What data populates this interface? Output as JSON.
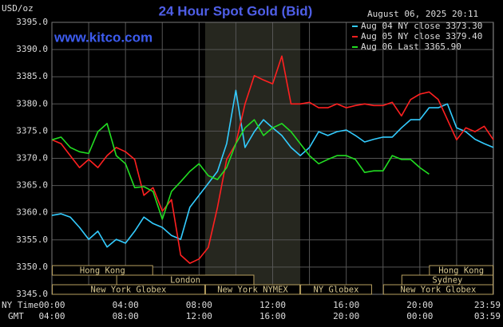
{
  "chart_data": {
    "type": "line",
    "title": "24 Hour Spot Gold (Bid)",
    "unit_label": "USD/oz",
    "timestamp": "August 06, 2025 20:11",
    "watermark": "www.kitco.com",
    "x_row_labels": [
      "NY Time",
      "GMT"
    ],
    "x": [
      0,
      0.5,
      1,
      1.5,
      2,
      2.5,
      3,
      3.5,
      4,
      4.5,
      5,
      5.5,
      6,
      6.5,
      7,
      7.5,
      8,
      8.5,
      9,
      9.5,
      10,
      10.5,
      11,
      11.5,
      12,
      12.5,
      13,
      13.5,
      14,
      14.5,
      15,
      15.5,
      16,
      16.5,
      17,
      17.5,
      18,
      18.5,
      19,
      19.5,
      20,
      20.5,
      21,
      21.5,
      22,
      22.5,
      23,
      23.5,
      24
    ],
    "series": [
      {
        "name": "Aug 04 NY close 3373.30",
        "color": "#33ccff",
        "values": [
          3359.5,
          3359.8,
          3359.2,
          3357.3,
          3355.1,
          3356.6,
          3353.7,
          3355.1,
          3354.4,
          3356.6,
          3359.2,
          3358,
          3357.3,
          3355.8,
          3355.1,
          3361,
          3363.2,
          3365.4,
          3367.6,
          3372.7,
          3382.5,
          3372,
          3374.9,
          3377.1,
          3375.6,
          3374.2,
          3372,
          3370.5,
          3372,
          3374.9,
          3374.2,
          3374.9,
          3375.2,
          3374.2,
          3373,
          3373.5,
          3373.9,
          3373.9,
          3375.6,
          3377.1,
          3377.1,
          3379.3,
          3379.3,
          3380,
          3375.6,
          3374.9,
          3373.5,
          3372.7,
          3372
        ]
      },
      {
        "name": "Aug 05 NY close 3379.40",
        "color": "#ff2020",
        "values": [
          3373.4,
          3372.7,
          3370.5,
          3368.3,
          3369.8,
          3368.3,
          3370.5,
          3372,
          3371.2,
          3369.8,
          3363.2,
          3364.6,
          3360.3,
          3362.4,
          3352.2,
          3350.7,
          3351.5,
          3353.6,
          3361,
          3369.8,
          3372.7,
          3380,
          3385.2,
          3384.4,
          3383.7,
          3388.8,
          3380,
          3380,
          3380.3,
          3379.3,
          3379.3,
          3380,
          3379.3,
          3379.7,
          3380,
          3379.7,
          3379.7,
          3380.3,
          3377.8,
          3380.8,
          3381.8,
          3382.2,
          3380.8,
          3377.1,
          3373.4,
          3375.6,
          3374.9,
          3375.9,
          3373.4
        ]
      },
      {
        "name": "Aug 06 Last 3365.90",
        "color": "#22dd22",
        "values": [
          3373.4,
          3373.9,
          3372,
          3371.2,
          3370.9,
          3374.9,
          3376.4,
          3370.5,
          3369,
          3364.6,
          3364.8,
          3363.9,
          3358.8,
          3363.9,
          3365.7,
          3367.6,
          3369,
          3366.8,
          3366.1,
          3368.3,
          3372.7,
          3375.6,
          3377.1,
          3374.2,
          3375.6,
          3376.4,
          3374.9,
          3372.7,
          3370.5,
          3369,
          3369.8,
          3370.5,
          3370.5,
          3369.8,
          3367.4,
          3367.7,
          3367.7,
          3370.5,
          3369.8,
          3369.8,
          3368.3,
          3367.1,
          null,
          null,
          null,
          null,
          null,
          null,
          null
        ]
      }
    ],
    "xlim": [
      0,
      24
    ],
    "xticks": [
      {
        "value": 0,
        "label": "00:00"
      },
      {
        "value": 4,
        "label": "04:00"
      },
      {
        "value": 8,
        "label": "08:00"
      },
      {
        "value": 12,
        "label": "12:00"
      },
      {
        "value": 16,
        "label": "16:00"
      },
      {
        "value": 20,
        "label": "20:00"
      },
      {
        "value": 23.98,
        "label": "23:59"
      }
    ],
    "xticks_gmt": [
      "04:00",
      "08:00",
      "12:00",
      "16:00",
      "20:00",
      "00:00",
      "03:59"
    ],
    "xminor": [
      2,
      6,
      10,
      14,
      18,
      22
    ],
    "ylim": [
      3345,
      3395
    ],
    "yticks": [
      {
        "value": 3345,
        "label": "3345.0"
      },
      {
        "value": 3350,
        "label": "3350.0"
      },
      {
        "value": 3355,
        "label": "3355.0"
      },
      {
        "value": 3360,
        "label": "3360.0"
      },
      {
        "value": 3365,
        "label": "3365.0"
      },
      {
        "value": 3370,
        "label": "3370.0"
      },
      {
        "value": 3375,
        "label": "3375.0"
      },
      {
        "value": 3380,
        "label": "3380.0"
      },
      {
        "value": 3385,
        "label": "3385.0"
      },
      {
        "value": 3390,
        "label": "3390.0"
      },
      {
        "value": 3395,
        "label": "3395.0"
      }
    ],
    "grid": true,
    "shade": [
      8.33,
      13.5
    ],
    "sessions": [
      [
        {
          "label": "Hong Kong",
          "start": 0,
          "end": 5.5
        },
        {
          "label": "Hong Kong",
          "start": 20.5,
          "end": 24
        }
      ],
      [
        {
          "label": "London",
          "start": 3.5,
          "end": 11
        },
        {
          "label": "Sydney",
          "start": 19,
          "end": 24
        }
      ],
      [
        {
          "label": "New York Globex",
          "start": 0,
          "end": 8.33
        },
        {
          "label": "New York NYMEX",
          "start": 8.33,
          "end": 13.5
        },
        {
          "label": "NY Globex",
          "start": 13.5,
          "end": 17.4
        },
        {
          "label": "New York Globex",
          "start": 18,
          "end": 24
        }
      ]
    ]
  }
}
